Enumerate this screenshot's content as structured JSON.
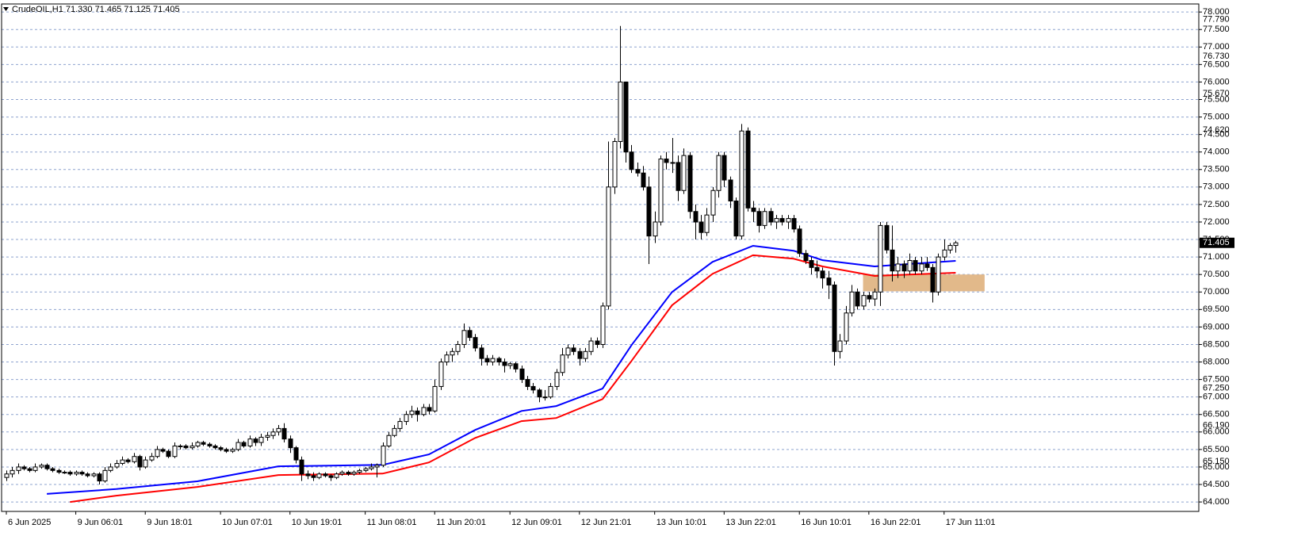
{
  "chart_data": {
    "type": "candlestick",
    "title": "CrudeOIL,H1  71.330 71.465 71.125 71.405",
    "ylim": [
      63.73,
      78.23
    ],
    "xlim": [
      -0.82,
      206.0
    ],
    "grid": true,
    "grid_color": "#8ea3cf",
    "up_color": "#ffffff",
    "down_color": "#000000",
    "yticks": [
      {
        "value": 64,
        "label": "64.000"
      },
      {
        "value": 64.5,
        "label": "64.500"
      },
      {
        "value": 65,
        "label": "65.000"
      },
      {
        "value": 65.5,
        "label": "65.500"
      },
      {
        "value": 66,
        "label": "66.000"
      },
      {
        "value": 66.5,
        "label": "66.500"
      },
      {
        "value": 67,
        "label": "67.000"
      },
      {
        "value": 67.5,
        "label": "67.500"
      },
      {
        "value": 68,
        "label": "68.000"
      },
      {
        "value": 68.5,
        "label": "68.500"
      },
      {
        "value": 69,
        "label": "69.000"
      },
      {
        "value": 69.5,
        "label": "69.500"
      },
      {
        "value": 70,
        "label": "70.000"
      },
      {
        "value": 70.5,
        "label": "70.500"
      },
      {
        "value": 71,
        "label": "71.000"
      },
      {
        "value": 71.5,
        "label": "71.500"
      },
      {
        "value": 72,
        "label": "72.000"
      },
      {
        "value": 72.5,
        "label": "72.500"
      },
      {
        "value": 73,
        "label": "73.000"
      },
      {
        "value": 73.5,
        "label": "73.500"
      },
      {
        "value": 74,
        "label": "74.000"
      },
      {
        "value": 74.5,
        "label": "74.500"
      },
      {
        "value": 75,
        "label": "75.000"
      },
      {
        "value": 75.5,
        "label": "75.500"
      },
      {
        "value": 76,
        "label": "76.000"
      },
      {
        "value": 76.5,
        "label": "76.500"
      },
      {
        "value": 77,
        "label": "77.000"
      },
      {
        "value": 77.5,
        "label": "77.500"
      },
      {
        "value": 78,
        "label": "78.000"
      }
    ],
    "level_labels": [
      {
        "value": 77.79,
        "label": "77.790"
      },
      {
        "value": 76.73,
        "label": "76.730"
      },
      {
        "value": 75.67,
        "label": "75.670"
      },
      {
        "value": 74.62,
        "label": "74.620"
      },
      {
        "value": 67.25,
        "label": "67.250"
      },
      {
        "value": 66.19,
        "label": "66.190"
      },
      {
        "value": 65.15,
        "label": "65.150"
      }
    ],
    "last_price": {
      "value": 71.405,
      "label": "71.405"
    },
    "xticks": [
      {
        "value": 0,
        "label": "6 Jun 2025"
      },
      {
        "value": 12,
        "label": "9 Jun 06:01"
      },
      {
        "value": 24,
        "label": "9 Jun 18:01"
      },
      {
        "value": 37,
        "label": "10 Jun 07:01"
      },
      {
        "value": 49,
        "label": "10 Jun 19:01"
      },
      {
        "value": 62,
        "label": "11 Jun 08:01"
      },
      {
        "value": 74,
        "label": "11 Jun 20:01"
      },
      {
        "value": 87,
        "label": "12 Jun 09:01"
      },
      {
        "value": 99,
        "label": "12 Jun 21:01"
      },
      {
        "value": 112,
        "label": "13 Jun 10:01"
      },
      {
        "value": 124,
        "label": "13 Jun 22:01"
      },
      {
        "value": 137,
        "label": "16 Jun 10:01"
      },
      {
        "value": 149,
        "label": "16 Jun 22:01"
      },
      {
        "value": 162,
        "label": "17 Jun 11:01"
      }
    ],
    "zone": {
      "x": [
        148,
        169
      ],
      "y": [
        70.02,
        70.5
      ],
      "color": "#e2b98a"
    },
    "series": [
      {
        "color": "#0000ff",
        "x": [
          7,
          19,
          33,
          47,
          56,
          65,
          73,
          81,
          89,
          95,
          103,
          108,
          115,
          122,
          129,
          136,
          141,
          150,
          156,
          164
        ],
        "values": [
          64.23,
          64.37,
          64.59,
          65.02,
          65.04,
          65.06,
          65.36,
          66.06,
          66.6,
          66.74,
          67.24,
          68.48,
          70.0,
          70.86,
          71.32,
          71.18,
          70.91,
          70.73,
          70.8,
          70.89
        ]
      },
      {
        "color": "#ff0000",
        "x": [
          11,
          19,
          33,
          47,
          56,
          65,
          73,
          81,
          89,
          95,
          103,
          108,
          115,
          122,
          129,
          136,
          141,
          150,
          156,
          164
        ],
        "values": [
          64.0,
          64.18,
          64.43,
          64.77,
          64.79,
          64.81,
          65.13,
          65.83,
          66.31,
          66.4,
          66.94,
          68.03,
          69.62,
          70.52,
          71.05,
          70.95,
          70.73,
          70.46,
          70.5,
          70.55
        ]
      }
    ],
    "ohlc": [
      [
        64.7,
        64.9,
        64.6,
        64.8
      ],
      [
        64.8,
        65.0,
        64.7,
        64.9
      ],
      [
        64.9,
        65.1,
        64.8,
        65.0
      ],
      [
        65.0,
        65.05,
        64.9,
        64.95
      ],
      [
        64.95,
        65.0,
        64.85,
        64.9
      ],
      [
        64.9,
        65.1,
        64.85,
        65.0
      ],
      [
        65.0,
        65.1,
        64.95,
        65.05
      ],
      [
        65.05,
        65.1,
        64.9,
        64.95
      ],
      [
        64.95,
        65.0,
        64.85,
        64.9
      ],
      [
        64.9,
        64.95,
        64.8,
        64.85
      ],
      [
        64.85,
        64.9,
        64.8,
        64.85
      ],
      [
        64.85,
        64.9,
        64.75,
        64.8
      ],
      [
        64.8,
        64.9,
        64.75,
        64.85
      ],
      [
        64.85,
        64.9,
        64.75,
        64.8
      ],
      [
        64.8,
        64.85,
        64.7,
        64.75
      ],
      [
        64.75,
        64.85,
        64.7,
        64.8
      ],
      [
        64.8,
        64.85,
        64.5,
        64.6
      ],
      [
        64.6,
        65.0,
        64.55,
        64.9
      ],
      [
        64.9,
        65.1,
        64.85,
        65.0
      ],
      [
        65.0,
        65.2,
        64.95,
        65.1
      ],
      [
        65.1,
        65.3,
        65.05,
        65.2
      ],
      [
        65.2,
        65.25,
        65.1,
        65.15
      ],
      [
        65.15,
        65.4,
        65.1,
        65.3
      ],
      [
        65.3,
        65.35,
        64.9,
        65.0
      ],
      [
        65.0,
        65.3,
        64.95,
        65.2
      ],
      [
        65.2,
        65.4,
        65.15,
        65.3
      ],
      [
        65.3,
        65.6,
        65.25,
        65.5
      ],
      [
        65.5,
        65.55,
        65.4,
        65.45
      ],
      [
        65.45,
        65.5,
        65.25,
        65.3
      ],
      [
        65.3,
        65.7,
        65.25,
        65.6
      ],
      [
        65.6,
        65.65,
        65.5,
        65.6
      ],
      [
        65.6,
        65.65,
        65.5,
        65.55
      ],
      [
        65.55,
        65.7,
        65.5,
        65.6
      ],
      [
        65.6,
        65.75,
        65.55,
        65.7
      ],
      [
        65.7,
        65.75,
        65.6,
        65.65
      ],
      [
        65.65,
        65.7,
        65.55,
        65.6
      ],
      [
        65.6,
        65.65,
        65.5,
        65.55
      ],
      [
        65.55,
        65.6,
        65.45,
        65.5
      ],
      [
        65.5,
        65.55,
        65.4,
        65.45
      ],
      [
        65.45,
        65.55,
        65.4,
        65.5
      ],
      [
        65.5,
        65.8,
        65.45,
        65.7
      ],
      [
        65.7,
        65.75,
        65.55,
        65.6
      ],
      [
        65.6,
        65.9,
        65.55,
        65.8
      ],
      [
        65.8,
        65.85,
        65.6,
        65.7
      ],
      [
        65.7,
        65.95,
        65.6,
        65.85
      ],
      [
        65.85,
        66.0,
        65.75,
        65.9
      ],
      [
        65.9,
        66.1,
        65.8,
        66.0
      ],
      [
        66.0,
        66.2,
        65.9,
        66.1
      ],
      [
        66.1,
        66.25,
        65.7,
        65.8
      ],
      [
        65.8,
        65.9,
        65.4,
        65.55
      ],
      [
        65.55,
        65.6,
        65.1,
        65.2
      ],
      [
        65.2,
        65.3,
        64.6,
        64.8
      ],
      [
        64.8,
        64.9,
        64.65,
        64.75
      ],
      [
        64.75,
        64.85,
        64.6,
        64.7
      ],
      [
        64.7,
        64.85,
        64.65,
        64.8
      ],
      [
        64.8,
        64.85,
        64.7,
        64.75
      ],
      [
        64.75,
        64.8,
        64.6,
        64.7
      ],
      [
        64.7,
        64.85,
        64.65,
        64.8
      ],
      [
        64.8,
        64.9,
        64.75,
        64.85
      ],
      [
        64.85,
        64.9,
        64.75,
        64.8
      ],
      [
        64.8,
        64.9,
        64.75,
        64.85
      ],
      [
        64.85,
        64.95,
        64.8,
        64.9
      ],
      [
        64.9,
        65.0,
        64.85,
        64.95
      ],
      [
        64.95,
        65.1,
        64.9,
        65.0
      ],
      [
        65.0,
        65.1,
        64.7,
        65.05
      ],
      [
        65.05,
        65.7,
        65.0,
        65.6
      ],
      [
        65.6,
        66.0,
        65.55,
        65.9
      ],
      [
        65.9,
        66.2,
        65.85,
        66.1
      ],
      [
        66.1,
        66.4,
        66.0,
        66.3
      ],
      [
        66.3,
        66.6,
        66.2,
        66.5
      ],
      [
        66.5,
        66.75,
        66.4,
        66.6
      ],
      [
        66.6,
        66.7,
        66.3,
        66.5
      ],
      [
        66.5,
        66.8,
        66.45,
        66.7
      ],
      [
        66.7,
        66.8,
        66.5,
        66.6
      ],
      [
        66.6,
        67.5,
        66.55,
        67.3
      ],
      [
        67.3,
        68.1,
        67.2,
        68.0
      ],
      [
        68.0,
        68.3,
        67.9,
        68.2
      ],
      [
        68.2,
        68.4,
        68.0,
        68.3
      ],
      [
        68.3,
        68.6,
        68.2,
        68.5
      ],
      [
        68.5,
        69.1,
        68.4,
        68.9
      ],
      [
        68.9,
        69.0,
        68.6,
        68.7
      ],
      [
        68.7,
        68.8,
        68.3,
        68.4
      ],
      [
        68.4,
        68.5,
        67.9,
        68.1
      ],
      [
        68.1,
        68.2,
        67.9,
        68.0
      ],
      [
        68.0,
        68.2,
        67.9,
        68.1
      ],
      [
        68.1,
        68.15,
        67.9,
        68.0
      ],
      [
        68.0,
        68.1,
        67.7,
        67.9
      ],
      [
        67.9,
        68.0,
        67.8,
        67.95
      ],
      [
        67.95,
        68.0,
        67.7,
        67.8
      ],
      [
        67.8,
        67.9,
        67.4,
        67.5
      ],
      [
        67.5,
        67.6,
        67.2,
        67.3
      ],
      [
        67.3,
        67.4,
        67.1,
        67.2
      ],
      [
        67.2,
        67.25,
        66.85,
        67.0
      ],
      [
        67.0,
        67.2,
        66.9,
        67.0
      ],
      [
        67.0,
        67.4,
        66.95,
        67.3
      ],
      [
        67.3,
        67.8,
        67.2,
        67.7
      ],
      [
        67.7,
        68.4,
        67.6,
        68.2
      ],
      [
        68.2,
        68.5,
        68.1,
        68.4
      ],
      [
        68.4,
        68.5,
        68.2,
        68.3
      ],
      [
        68.3,
        68.4,
        67.9,
        68.1
      ],
      [
        68.1,
        68.4,
        68.0,
        68.3
      ],
      [
        68.3,
        68.7,
        68.2,
        68.6
      ],
      [
        68.6,
        68.7,
        68.4,
        68.5
      ],
      [
        68.5,
        69.7,
        68.4,
        69.6
      ],
      [
        69.6,
        74.3,
        69.5,
        73.0
      ],
      [
        73.0,
        74.4,
        72.8,
        74.3
      ],
      [
        74.3,
        77.6,
        74.1,
        76.0
      ],
      [
        76.0,
        76.0,
        73.7,
        74.0
      ],
      [
        74.0,
        74.2,
        73.4,
        73.5
      ],
      [
        73.5,
        73.7,
        73.3,
        73.4
      ],
      [
        73.4,
        73.6,
        72.9,
        73.0
      ],
      [
        73.0,
        73.3,
        70.8,
        71.6
      ],
      [
        71.6,
        72.3,
        71.4,
        72.0
      ],
      [
        72.0,
        73.9,
        71.9,
        73.8
      ],
      [
        73.8,
        74.0,
        73.5,
        73.7
      ],
      [
        73.7,
        74.4,
        73.4,
        73.7
      ],
      [
        73.7,
        73.9,
        72.6,
        72.9
      ],
      [
        72.9,
        74.1,
        72.8,
        73.9
      ],
      [
        73.9,
        74.0,
        72.1,
        72.3
      ],
      [
        72.3,
        72.5,
        71.5,
        72.0
      ],
      [
        72.0,
        72.2,
        71.5,
        71.7
      ],
      [
        71.7,
        72.4,
        71.6,
        72.2
      ],
      [
        72.2,
        73.0,
        72.0,
        72.9
      ],
      [
        72.9,
        74.0,
        72.7,
        73.9
      ],
      [
        73.9,
        74.0,
        73.0,
        73.2
      ],
      [
        73.2,
        73.3,
        72.4,
        72.6
      ],
      [
        72.6,
        72.7,
        71.5,
        71.6
      ],
      [
        71.6,
        74.8,
        71.5,
        74.6
      ],
      [
        74.6,
        74.7,
        72.3,
        72.4
      ],
      [
        72.4,
        72.6,
        72.0,
        72.3
      ],
      [
        72.3,
        72.4,
        71.7,
        71.9
      ],
      [
        71.9,
        72.4,
        71.8,
        72.3
      ],
      [
        72.3,
        72.4,
        71.9,
        72.0
      ],
      [
        72.0,
        72.2,
        71.8,
        72.1
      ],
      [
        72.1,
        72.2,
        71.9,
        72.0
      ],
      [
        72.0,
        72.2,
        71.8,
        72.1
      ],
      [
        72.1,
        72.2,
        71.7,
        71.8
      ],
      [
        71.8,
        71.9,
        71.0,
        71.1
      ],
      [
        71.1,
        71.2,
        70.8,
        70.9
      ],
      [
        70.9,
        71.0,
        70.5,
        70.7
      ],
      [
        70.7,
        70.9,
        70.4,
        70.6
      ],
      [
        70.6,
        70.7,
        70.1,
        70.4
      ],
      [
        70.4,
        70.6,
        69.8,
        70.2
      ],
      [
        70.2,
        70.3,
        67.9,
        68.3
      ],
      [
        68.3,
        68.8,
        68.1,
        68.6
      ],
      [
        68.6,
        69.6,
        68.5,
        69.4
      ],
      [
        69.4,
        70.2,
        69.3,
        70.0
      ],
      [
        70.0,
        70.1,
        69.5,
        69.6
      ],
      [
        69.6,
        70.0,
        69.5,
        69.9
      ],
      [
        69.9,
        70.0,
        69.7,
        69.8
      ],
      [
        69.8,
        70.1,
        69.6,
        70.0
      ],
      [
        70.0,
        72.0,
        69.6,
        71.9
      ],
      [
        71.9,
        72.0,
        71.1,
        71.2
      ],
      [
        71.2,
        71.9,
        70.3,
        70.6
      ],
      [
        70.6,
        71.0,
        70.4,
        70.8
      ],
      [
        70.8,
        70.9,
        70.4,
        70.6
      ],
      [
        70.6,
        71.1,
        70.5,
        70.9
      ],
      [
        70.9,
        71.0,
        70.5,
        70.6
      ],
      [
        70.6,
        71.0,
        70.5,
        70.8
      ],
      [
        70.8,
        71.0,
        70.6,
        70.7
      ],
      [
        70.7,
        70.8,
        69.7,
        70.0
      ],
      [
        70.0,
        71.1,
        69.9,
        71.0
      ],
      [
        71.0,
        71.5,
        70.9,
        71.2
      ],
      [
        71.2,
        71.4,
        71.1,
        71.33
      ],
      [
        71.33,
        71.465,
        71.125,
        71.405
      ]
    ]
  }
}
